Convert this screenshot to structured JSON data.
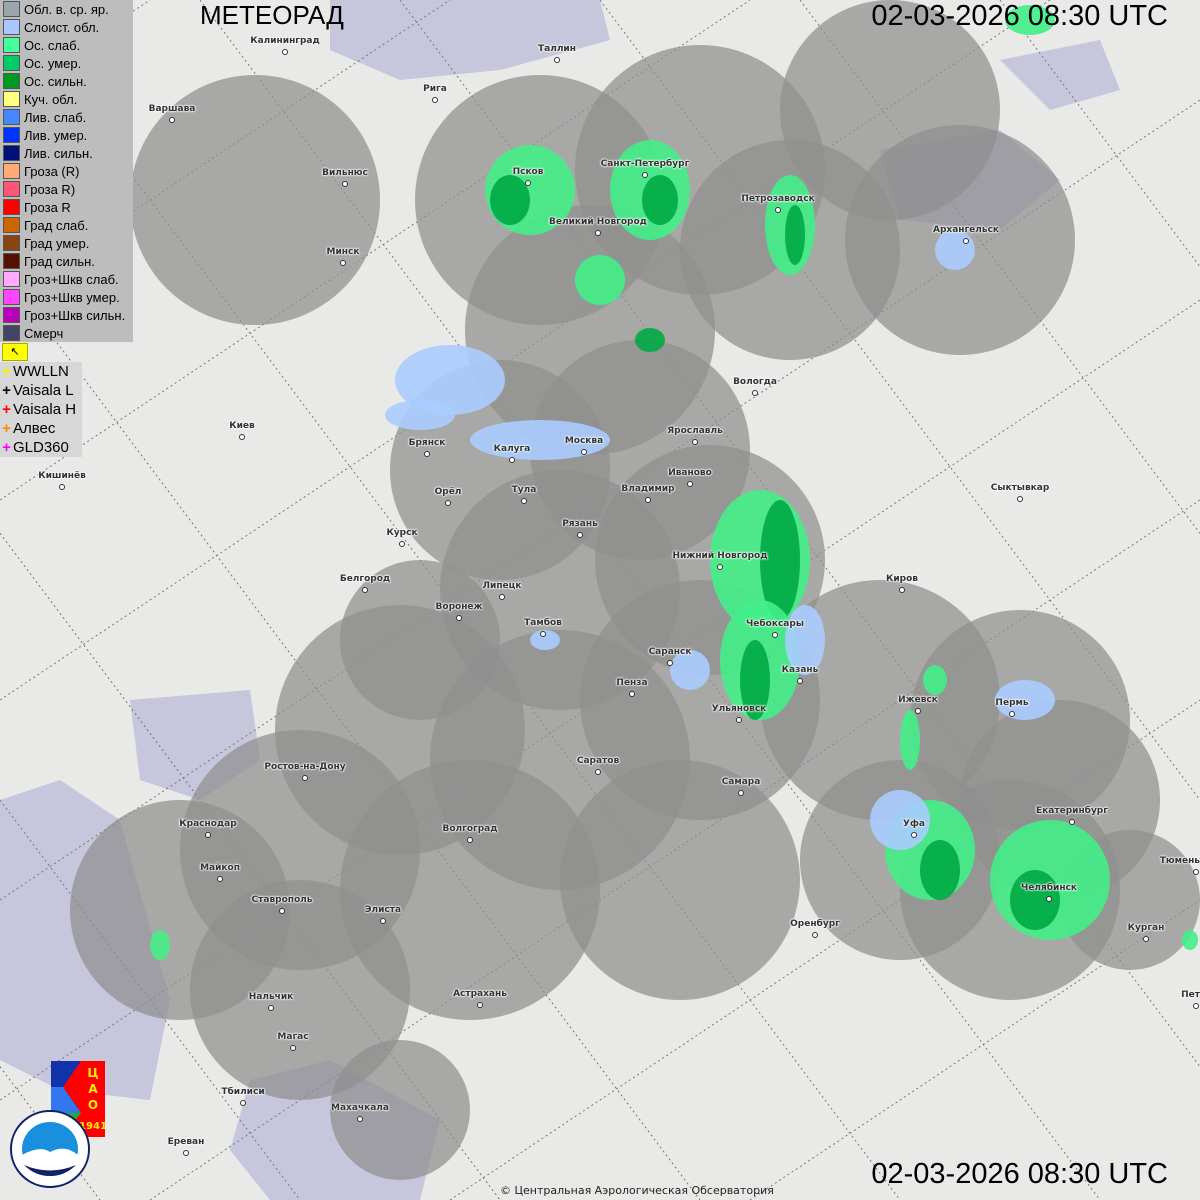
{
  "header": {
    "title": "МЕТЕОРАД",
    "timestamp": "02-03-2026  08:30 UTC"
  },
  "footer": {
    "copyright": "© Центральная Аэрологическая Обсерватория",
    "timestamp": "02-03-2026  08:30 UTC"
  },
  "legend": {
    "items": [
      {
        "label": "Обл. в. ср. яр.",
        "color": "#9aa6ae"
      },
      {
        "label": "Слоист. обл.",
        "color": "#a8c8ff"
      },
      {
        "label": "Ос. слаб.",
        "color": "#44ff99"
      },
      {
        "label": "Ос. умер.",
        "color": "#00cc66"
      },
      {
        "label": "Ос. сильн.",
        "color": "#009922"
      },
      {
        "label": "Куч. обл.",
        "color": "#ffff80"
      },
      {
        "label": "Лив. слаб.",
        "color": "#4488ff"
      },
      {
        "label": "Лив. умер.",
        "color": "#0033ff"
      },
      {
        "label": "Лив. сильн.",
        "color": "#001177"
      },
      {
        "label": "Гроза (R)",
        "color": "#ffaa77"
      },
      {
        "label": "Гроза R)",
        "color": "#ff5577"
      },
      {
        "label": "Гроза R",
        "color": "#ff0000"
      },
      {
        "label": "Град слаб.",
        "color": "#cc6600"
      },
      {
        "label": "Град умер.",
        "color": "#884411"
      },
      {
        "label": "Град сильн.",
        "color": "#551100"
      },
      {
        "label": "Гроз+Шкв слаб.",
        "color": "#ffaaff"
      },
      {
        "label": "Гроз+Шкв умер.",
        "color": "#ff44ff"
      },
      {
        "label": "Гроз+Шкв сильн.",
        "color": "#bb00bb"
      },
      {
        "label": "Смерч",
        "color": "#444466"
      }
    ],
    "tool_icon": "arrow-cursor-icon",
    "lightning": [
      {
        "label": "WWLLN",
        "color": "#ffee00"
      },
      {
        "label": "Vaisala L",
        "color": "#000000"
      },
      {
        "label": "Vaisala H",
        "color": "#ff0000"
      },
      {
        "label": "Алвес",
        "color": "#ff8800"
      },
      {
        "label": "GLD360",
        "color": "#ff00ff"
      }
    ]
  },
  "cities": [
    "Калининград",
    "Таллин",
    "Рига",
    "Варшава",
    "Вильнюс",
    "Минск",
    "Псков",
    "Санкт-Петербург",
    "Великий Новгород",
    "Петрозаводск",
    "Архангельск",
    "Вологда",
    "Ярославль",
    "Киев",
    "Брянск",
    "Калуга",
    "Москва",
    "Иваново",
    "Владимир",
    "Тула",
    "Орёл",
    "Кишинёв",
    "Сыктывкар",
    "Рязань",
    "Курск",
    "Нижний Новгород",
    "Киров",
    "Белгород",
    "Липецк",
    "Воронеж",
    "Тамбов",
    "Чебоксары",
    "Саранск",
    "Казань",
    "Пенза",
    "Ижевск",
    "Пермь",
    "Ульяновск",
    "Ростов-на-Дону",
    "Саратов",
    "Самара",
    "Уфа",
    "Екатеринбург",
    "Краснодар",
    "Волгоград",
    "Майкоп",
    "Челябинск",
    "Тюмень",
    "Ставрополь",
    "Элиста",
    "Оренбург",
    "Курган",
    "Астрахань",
    "Нальчик",
    "Магас",
    "Махачкала",
    "Тбилиси",
    "Ереван",
    "Пет"
  ],
  "logos": {
    "cao": "ЦАО 1941",
    "roshydromet": "РОСГИДРОМЕТ ROSHYDROMET"
  }
}
